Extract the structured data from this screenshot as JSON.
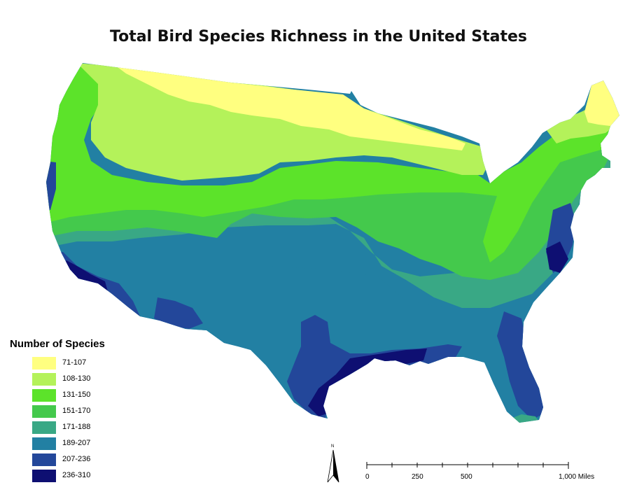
{
  "title": "Total Bird Species Richness in the United States",
  "legend": {
    "title": "Number of Species",
    "items": [
      {
        "label": "71-107",
        "color": "#ffff80"
      },
      {
        "label": "108-130",
        "color": "#b4f25a"
      },
      {
        "label": "131-150",
        "color": "#5ce32a"
      },
      {
        "label": "151-170",
        "color": "#44c94c"
      },
      {
        "label": "171-188",
        "color": "#39a885"
      },
      {
        "label": "189-207",
        "color": "#2280a3"
      },
      {
        "label": "207-236",
        "color": "#23479a"
      },
      {
        "label": "236-310",
        "color": "#0e0f72"
      }
    ]
  },
  "north_arrow": {
    "label": "N"
  },
  "scale_bar": {
    "labels": [
      "0",
      "250",
      "500",
      "1,000 Miles"
    ]
  }
}
